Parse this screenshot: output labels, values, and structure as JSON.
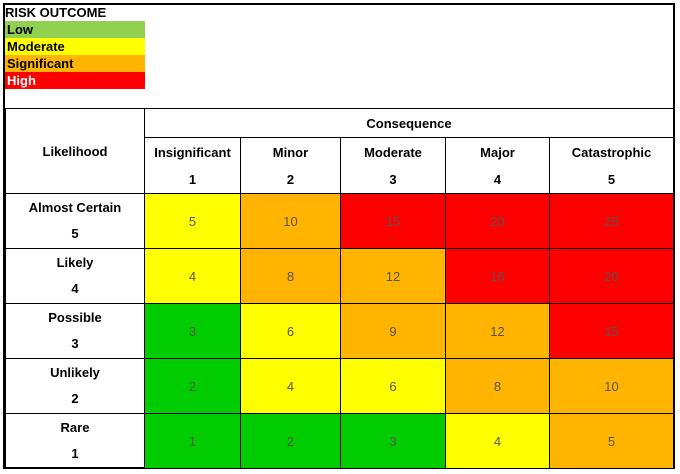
{
  "colors": {
    "low": "#00cc00",
    "low_legend": "#92d050",
    "moderate": "#ffff00",
    "significant": "#ffb400",
    "high": "#ff0000"
  },
  "legend": {
    "title": "RISK OUTCOME",
    "items": [
      {
        "label": "Low",
        "level": "low_legend"
      },
      {
        "label": "Moderate",
        "level": "moderate"
      },
      {
        "label": "Significant",
        "level": "significant"
      },
      {
        "label": "High",
        "level": "high"
      }
    ]
  },
  "matrix": {
    "likelihood_header": "Likelihood",
    "consequence_header": "Consequence",
    "consequences": [
      {
        "label": "Insignificant",
        "score": "1"
      },
      {
        "label": "Minor",
        "score": "2"
      },
      {
        "label": "Moderate",
        "score": "3"
      },
      {
        "label": "Major",
        "score": "4"
      },
      {
        "label": "Catastrophic",
        "score": "5"
      }
    ],
    "rows": [
      {
        "label": "Almost Certain",
        "score": "5",
        "cells": [
          {
            "v": "5",
            "l": "moderate"
          },
          {
            "v": "10",
            "l": "significant"
          },
          {
            "v": "15",
            "l": "high"
          },
          {
            "v": "20",
            "l": "high"
          },
          {
            "v": "25",
            "l": "high"
          }
        ]
      },
      {
        "label": "Likely",
        "score": "4",
        "cells": [
          {
            "v": "4",
            "l": "moderate"
          },
          {
            "v": "8",
            "l": "significant"
          },
          {
            "v": "12",
            "l": "significant"
          },
          {
            "v": "16",
            "l": "high"
          },
          {
            "v": "20",
            "l": "high"
          }
        ]
      },
      {
        "label": "Possible",
        "score": "3",
        "cells": [
          {
            "v": "3",
            "l": "low"
          },
          {
            "v": "6",
            "l": "moderate"
          },
          {
            "v": "9",
            "l": "significant"
          },
          {
            "v": "12",
            "l": "significant"
          },
          {
            "v": "15",
            "l": "high"
          }
        ]
      },
      {
        "label": "Unlikely",
        "score": "2",
        "cells": [
          {
            "v": "2",
            "l": "low"
          },
          {
            "v": "4",
            "l": "moderate"
          },
          {
            "v": "6",
            "l": "moderate"
          },
          {
            "v": "8",
            "l": "significant"
          },
          {
            "v": "10",
            "l": "significant"
          }
        ]
      },
      {
        "label": "Rare",
        "score": "1",
        "cells": [
          {
            "v": "1",
            "l": "low"
          },
          {
            "v": "2",
            "l": "low"
          },
          {
            "v": "3",
            "l": "low"
          },
          {
            "v": "4",
            "l": "moderate"
          },
          {
            "v": "5",
            "l": "significant"
          }
        ]
      }
    ]
  }
}
